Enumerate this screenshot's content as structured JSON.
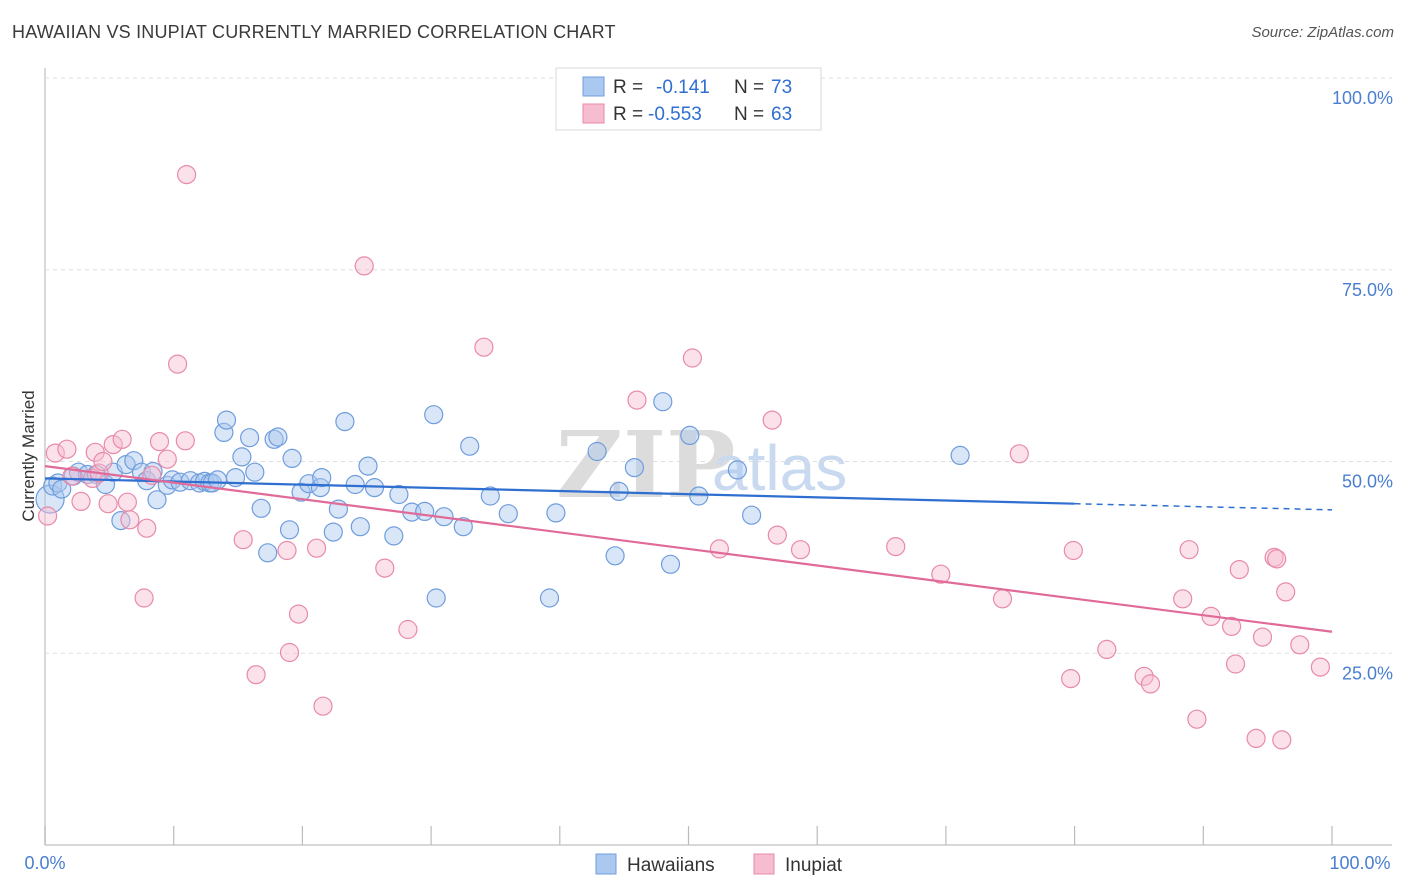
{
  "title": "HAWAIIAN VS INUPIAT CURRENTLY MARRIED CORRELATION CHART",
  "source": "Source: ZipAtlas.com",
  "watermark": {
    "zip": "ZIP",
    "atlas": "atlas"
  },
  "legend_top": {
    "r_label": "R =",
    "n_label": "N =",
    "rows": [
      {
        "r": "-0.141",
        "n": "73"
      },
      {
        "r": "-0.553",
        "n": "63"
      }
    ]
  },
  "colors": {
    "hawaiians_fill": "#aac8f0",
    "hawaiians_stroke": "#6f9ddc",
    "hawaiians_line": "#2f6fd0",
    "inupiat_fill": "#f6bcd0",
    "inupiat_stroke": "#e88aaa",
    "inupiat_line": "#e06a98",
    "grid": "#dddddd",
    "tick_text": "#4a7fd0"
  },
  "chart_data": {
    "type": "scatter",
    "title": "HAWAIIAN VS INUPIAT CURRENTLY MARRIED CORRELATION CHART",
    "xlabel": "",
    "ylabel": "Currently Married",
    "xlim": [
      0,
      100
    ],
    "ylim": [
      0,
      102
    ],
    "x_tick_labels": [
      "0.0%",
      "100.0%"
    ],
    "y_ticks": [
      25,
      50,
      75,
      100
    ],
    "y_tick_labels": [
      "25.0%",
      "50.0%",
      "75.0%",
      "100.0%"
    ],
    "grid": true,
    "legend": [
      "Hawaiians",
      "Inupiat"
    ],
    "series": [
      {
        "name": "Hawaiians",
        "r": -0.141,
        "n": 73,
        "trend": {
          "x0": 0,
          "y0": 47.8,
          "x1": 80,
          "y1": 44.5,
          "dashed_to_x": 100,
          "dashed_to_y": 43.7
        },
        "points": [
          [
            0.4,
            45.1
          ],
          [
            0.6,
            46.8
          ],
          [
            1.0,
            47.2
          ],
          [
            1.3,
            46.4
          ],
          [
            2.2,
            48.1
          ],
          [
            2.6,
            48.6
          ],
          [
            3.3,
            48.3
          ],
          [
            4.0,
            48.3
          ],
          [
            4.7,
            47.0
          ],
          [
            5.3,
            48.6
          ],
          [
            5.9,
            42.3
          ],
          [
            6.3,
            49.6
          ],
          [
            6.9,
            50.1
          ],
          [
            7.5,
            48.6
          ],
          [
            7.9,
            47.5
          ],
          [
            8.4,
            48.7
          ],
          [
            8.7,
            45.0
          ],
          [
            9.5,
            46.9
          ],
          [
            9.9,
            47.6
          ],
          [
            10.5,
            47.3
          ],
          [
            11.3,
            47.5
          ],
          [
            12.0,
            47.2
          ],
          [
            12.4,
            47.4
          ],
          [
            12.8,
            47.2
          ],
          [
            13.0,
            47.2
          ],
          [
            13.4,
            47.6
          ],
          [
            13.9,
            53.8
          ],
          [
            14.1,
            55.4
          ],
          [
            14.8,
            47.9
          ],
          [
            15.3,
            50.6
          ],
          [
            15.9,
            53.1
          ],
          [
            16.3,
            48.6
          ],
          [
            16.8,
            43.9
          ],
          [
            17.3,
            38.1
          ],
          [
            17.8,
            52.9
          ],
          [
            18.1,
            53.2
          ],
          [
            19.0,
            41.1
          ],
          [
            19.2,
            50.4
          ],
          [
            19.9,
            46.0
          ],
          [
            20.5,
            47.1
          ],
          [
            21.4,
            46.6
          ],
          [
            21.5,
            47.9
          ],
          [
            22.4,
            40.8
          ],
          [
            22.8,
            43.8
          ],
          [
            23.3,
            55.2
          ],
          [
            24.1,
            47.0
          ],
          [
            24.5,
            41.5
          ],
          [
            25.1,
            49.4
          ],
          [
            25.6,
            46.6
          ],
          [
            27.1,
            40.3
          ],
          [
            27.5,
            45.7
          ],
          [
            28.5,
            43.4
          ],
          [
            29.5,
            43.5
          ],
          [
            30.2,
            56.1
          ],
          [
            30.4,
            32.2
          ],
          [
            31.0,
            42.8
          ],
          [
            32.5,
            41.5
          ],
          [
            33.0,
            52.0
          ],
          [
            34.6,
            45.5
          ],
          [
            36.0,
            43.2
          ],
          [
            39.2,
            32.2
          ],
          [
            39.7,
            43.3
          ],
          [
            42.9,
            51.3
          ],
          [
            44.3,
            37.7
          ],
          [
            44.6,
            46.1
          ],
          [
            45.8,
            49.2
          ],
          [
            48.0,
            57.8
          ],
          [
            48.6,
            36.6
          ],
          [
            50.1,
            53.4
          ],
          [
            50.8,
            45.5
          ],
          [
            53.8,
            48.9
          ],
          [
            54.9,
            43.0
          ],
          [
            71.1,
            50.8
          ]
        ]
      },
      {
        "name": "Inupiat",
        "r": -0.553,
        "n": 63,
        "trend": {
          "x0": 0,
          "y0": 49.4,
          "x1": 100,
          "y1": 27.8
        },
        "points": [
          [
            0.2,
            42.9
          ],
          [
            0.8,
            51.1
          ],
          [
            1.7,
            51.6
          ],
          [
            2.1,
            48.1
          ],
          [
            2.8,
            44.8
          ],
          [
            3.7,
            47.8
          ],
          [
            3.9,
            51.2
          ],
          [
            4.2,
            48.5
          ],
          [
            4.5,
            50.0
          ],
          [
            4.9,
            44.5
          ],
          [
            5.3,
            52.2
          ],
          [
            6.0,
            52.9
          ],
          [
            6.4,
            44.7
          ],
          [
            6.6,
            42.4
          ],
          [
            7.7,
            32.2
          ],
          [
            7.9,
            41.3
          ],
          [
            8.3,
            48.2
          ],
          [
            8.9,
            52.6
          ],
          [
            9.5,
            50.3
          ],
          [
            10.3,
            62.7
          ],
          [
            10.9,
            52.7
          ],
          [
            11.0,
            87.4
          ],
          [
            15.4,
            39.8
          ],
          [
            16.4,
            22.2
          ],
          [
            18.8,
            38.4
          ],
          [
            19.0,
            25.1
          ],
          [
            19.7,
            30.1
          ],
          [
            21.1,
            38.7
          ],
          [
            21.6,
            18.1
          ],
          [
            24.8,
            75.5
          ],
          [
            26.4,
            36.1
          ],
          [
            28.2,
            28.1
          ],
          [
            34.1,
            64.9
          ],
          [
            46.0,
            58.0
          ],
          [
            50.3,
            63.5
          ],
          [
            52.4,
            38.6
          ],
          [
            56.5,
            55.4
          ],
          [
            56.9,
            40.4
          ],
          [
            58.7,
            38.5
          ],
          [
            66.1,
            38.9
          ],
          [
            69.6,
            35.3
          ],
          [
            74.4,
            32.1
          ],
          [
            75.7,
            51.0
          ],
          [
            79.7,
            21.7
          ],
          [
            79.9,
            38.4
          ],
          [
            82.5,
            25.5
          ],
          [
            85.4,
            22.0
          ],
          [
            85.9,
            21.0
          ],
          [
            88.4,
            32.1
          ],
          [
            88.9,
            38.5
          ],
          [
            89.5,
            16.4
          ],
          [
            90.6,
            29.8
          ],
          [
            92.2,
            28.5
          ],
          [
            92.5,
            23.6
          ],
          [
            92.8,
            35.9
          ],
          [
            94.1,
            13.9
          ],
          [
            94.6,
            27.1
          ],
          [
            95.5,
            37.5
          ],
          [
            96.1,
            13.7
          ],
          [
            96.4,
            33.0
          ],
          [
            97.5,
            26.1
          ],
          [
            99.1,
            23.2
          ],
          [
            95.7,
            37.3
          ]
        ]
      }
    ]
  }
}
